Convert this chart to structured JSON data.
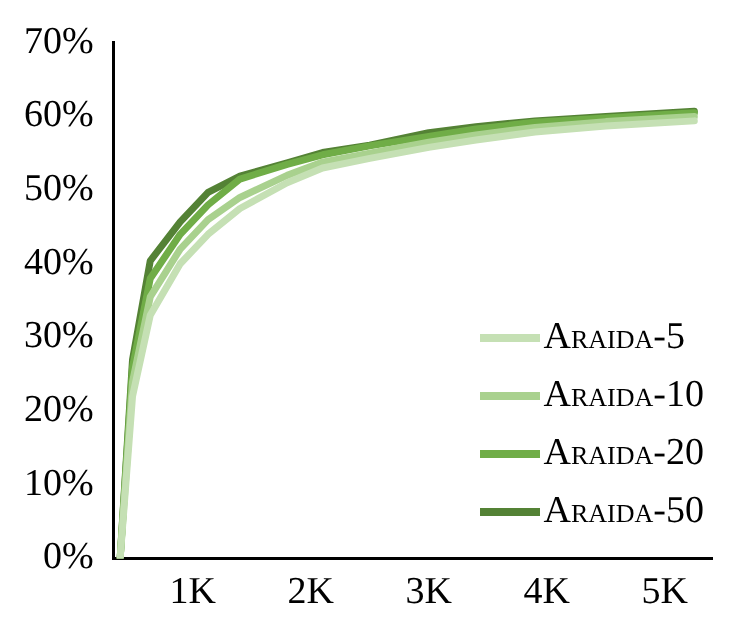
{
  "chart_data": {
    "type": "line",
    "x": [
      385,
      490,
      640,
      894,
      1130,
      1400,
      1800,
      2100,
      2500,
      3000,
      3400,
      3900,
      4500,
      5250
    ],
    "series": [
      {
        "name": "Araida-5",
        "color": "#c5e0b4",
        "values": [
          0,
          22,
          33,
          40,
          44,
          47.5,
          51,
          53,
          54.3,
          55.8,
          56.8,
          57.9,
          58.7,
          59.4
        ]
      },
      {
        "name": "Araida-10",
        "color": "#a9d18e",
        "values": [
          0,
          24,
          35.5,
          42,
          46,
          49,
          52,
          53.8,
          55,
          56.5,
          57.5,
          58.5,
          59.3,
          60.0
        ]
      },
      {
        "name": "Araida-20",
        "color": "#70ad47",
        "values": [
          0,
          26,
          38,
          44,
          48,
          51.5,
          53.5,
          54.8,
          56,
          57.3,
          58.3,
          59.2,
          59.8,
          60.5
        ]
      },
      {
        "name": "Araida-50",
        "color": "#548235",
        "values": [
          0,
          27,
          40.4,
          45.7,
          49.7,
          51.9,
          53.7,
          55.1,
          56.1,
          57.8,
          58.6,
          59.4,
          60.0,
          60.7
        ]
      }
    ],
    "xlim": [
      330,
      5400
    ],
    "xticks": [
      {
        "value": 1000,
        "label": "1K"
      },
      {
        "value": 2000,
        "label": "2K"
      },
      {
        "value": 3000,
        "label": "3K"
      },
      {
        "value": 4000,
        "label": "4K"
      },
      {
        "value": 5000,
        "label": "5K"
      }
    ],
    "ylim": [
      0,
      70
    ],
    "yticks": [
      {
        "value": 0,
        "label": "0%"
      },
      {
        "value": 10,
        "label": "10%"
      },
      {
        "value": 20,
        "label": "20%"
      },
      {
        "value": 30,
        "label": "30%"
      },
      {
        "value": 40,
        "label": "40%"
      },
      {
        "value": 50,
        "label": "50%"
      },
      {
        "value": 60,
        "label": "60%"
      },
      {
        "value": 70,
        "label": "70%"
      }
    ],
    "grid": false,
    "legend": "bottom right",
    "marker": "none",
    "line_style": "solid"
  }
}
